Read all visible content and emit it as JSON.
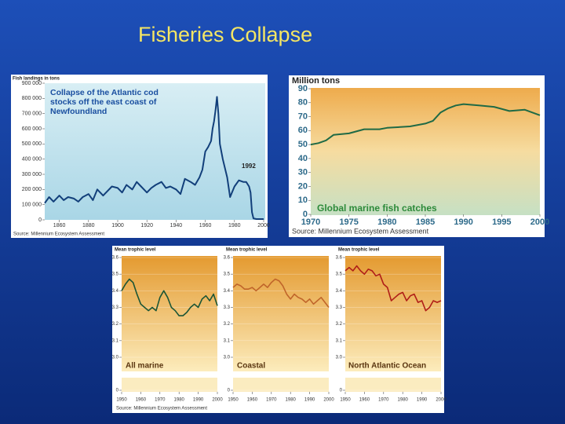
{
  "title": "Fisheries Collapse",
  "chart_data": [
    {
      "type": "line",
      "title": "Collapse of the Atlantic cod stocks off the east coast of Newfoundland",
      "ylabel": "Fish landings in tons",
      "annotation": "1992",
      "source": "Source: Millennium Ecosystem Assessment",
      "x": [
        1850,
        1853,
        1856,
        1860,
        1863,
        1866,
        1870,
        1873,
        1876,
        1880,
        1883,
        1886,
        1890,
        1893,
        1896,
        1900,
        1903,
        1906,
        1910,
        1913,
        1916,
        1920,
        1923,
        1926,
        1930,
        1933,
        1936,
        1940,
        1943,
        1946,
        1950,
        1953,
        1956,
        1958,
        1960,
        1962,
        1964,
        1965,
        1966,
        1967,
        1968,
        1969,
        1970,
        1972,
        1975,
        1977,
        1980,
        1983,
        1986,
        1988,
        1990,
        1991,
        1992,
        1993,
        1995,
        2000
      ],
      "series": [
        {
          "name": "Atlantic cod landings",
          "color": "#123f7a",
          "values": [
            110000,
            150000,
            120000,
            160000,
            130000,
            150000,
            140000,
            120000,
            150000,
            170000,
            130000,
            200000,
            160000,
            190000,
            220000,
            210000,
            180000,
            230000,
            200000,
            250000,
            220000,
            180000,
            210000,
            230000,
            250000,
            210000,
            220000,
            200000,
            170000,
            270000,
            250000,
            230000,
            280000,
            330000,
            450000,
            480000,
            520000,
            600000,
            650000,
            720000,
            810000,
            700000,
            500000,
            400000,
            280000,
            150000,
            220000,
            260000,
            250000,
            250000,
            220000,
            180000,
            50000,
            10000,
            5000,
            5000
          ]
        }
      ],
      "xlim": [
        1850,
        2000
      ],
      "xticks": [
        1860,
        1880,
        1900,
        1920,
        1940,
        1960,
        1980,
        2000
      ],
      "ylim": [
        0,
        900000
      ],
      "yticks": [
        0,
        {
          "value": 100000,
          "label": "100 000"
        },
        {
          "value": 200000,
          "label": "200 000"
        },
        {
          "value": 300000,
          "label": "300 000"
        },
        {
          "value": 400000,
          "label": "400 000"
        },
        {
          "value": 500000,
          "label": "500 000"
        },
        {
          "value": 600000,
          "label": "600 000"
        },
        {
          "value": 700000,
          "label": "700 000"
        },
        {
          "value": 800000,
          "label": "800 000"
        },
        {
          "value": 900000,
          "label": "900 000"
        }
      ]
    },
    {
      "type": "line",
      "ylabel": "Million tons",
      "label": "Global marine fish catches",
      "source": "Source: Millennium Ecosystem Assessment",
      "x": [
        1970,
        1971,
        1972,
        1973,
        1975,
        1977,
        1979,
        1980,
        1983,
        1985,
        1986,
        1987,
        1988,
        1989,
        1990,
        1992,
        1994,
        1996,
        1998,
        2000
      ],
      "series": [
        {
          "name": "Global marine fish catches",
          "color": "#1f6a45",
          "values": [
            50,
            51,
            53,
            57,
            58,
            61,
            61,
            62,
            63,
            65,
            67,
            73,
            76,
            78,
            79,
            78,
            77,
            74,
            75,
            71
          ]
        }
      ],
      "xlim": [
        1970,
        2000
      ],
      "xticks": [
        1970,
        1975,
        1980,
        1985,
        1990,
        1995,
        2000
      ],
      "ylim": [
        0,
        90
      ],
      "yticks": [
        0,
        10,
        20,
        30,
        40,
        50,
        60,
        70,
        80,
        90
      ]
    },
    {
      "type": "line",
      "ylabel": "Mean trophic level",
      "label": "All marine",
      "source": "Source: Millennium Ecosystem Assessment",
      "x": [
        1950,
        1952,
        1954,
        1956,
        1958,
        1960,
        1962,
        1964,
        1966,
        1968,
        1970,
        1972,
        1974,
        1976,
        1978,
        1980,
        1982,
        1984,
        1986,
        1988,
        1990,
        1992,
        1994,
        1996,
        1998,
        2000
      ],
      "series": [
        {
          "name": "All marine",
          "color": "#1b5535",
          "values": [
            3.4,
            3.44,
            3.47,
            3.45,
            3.38,
            3.32,
            3.3,
            3.28,
            3.3,
            3.28,
            3.36,
            3.4,
            3.36,
            3.3,
            3.28,
            3.25,
            3.25,
            3.27,
            3.3,
            3.32,
            3.3,
            3.35,
            3.37,
            3.34,
            3.38,
            3.31
          ]
        }
      ],
      "xlim": [
        1950,
        2000
      ],
      "xticks": [
        1950,
        1960,
        1970,
        1980,
        1990,
        2000
      ],
      "ylim": [
        3,
        3.6
      ],
      "yticks": [
        0,
        {
          "value": 3,
          "label": "3.0"
        },
        3.1,
        3.2,
        3.3,
        3.4,
        3.5,
        3.6
      ]
    },
    {
      "type": "line",
      "ylabel": "Mean trophic level",
      "label": "Coastal",
      "x": [
        1950,
        1952,
        1954,
        1956,
        1958,
        1960,
        1962,
        1964,
        1966,
        1968,
        1970,
        1972,
        1974,
        1976,
        1978,
        1980,
        1982,
        1984,
        1986,
        1988,
        1990,
        1992,
        1994,
        1996,
        1998,
        2000
      ],
      "series": [
        {
          "name": "Coastal",
          "color": "#c0652a",
          "values": [
            3.42,
            3.44,
            3.43,
            3.41,
            3.41,
            3.42,
            3.4,
            3.42,
            3.44,
            3.42,
            3.45,
            3.47,
            3.46,
            3.43,
            3.38,
            3.35,
            3.38,
            3.36,
            3.35,
            3.33,
            3.35,
            3.32,
            3.34,
            3.36,
            3.33,
            3.3
          ]
        }
      ],
      "xlim": [
        1950,
        2000
      ],
      "xticks": [
        1950,
        1960,
        1970,
        1980,
        1990,
        2000
      ],
      "ylim": [
        3,
        3.6
      ],
      "yticks": [
        0,
        {
          "value": 3,
          "label": "3.0"
        },
        3.1,
        3.2,
        3.3,
        3.4,
        3.5,
        3.6
      ]
    },
    {
      "type": "line",
      "ylabel": "Mean trophic level",
      "label": "North Atlantic Ocean",
      "x": [
        1950,
        1952,
        1954,
        1956,
        1958,
        1960,
        1962,
        1964,
        1966,
        1968,
        1970,
        1972,
        1974,
        1976,
        1978,
        1980,
        1982,
        1984,
        1986,
        1988,
        1990,
        1992,
        1994,
        1996,
        1998,
        2000
      ],
      "series": [
        {
          "name": "North Atlantic Ocean",
          "color": "#b01e18",
          "values": [
            3.52,
            3.54,
            3.52,
            3.55,
            3.52,
            3.5,
            3.53,
            3.52,
            3.49,
            3.5,
            3.44,
            3.42,
            3.34,
            3.36,
            3.38,
            3.39,
            3.34,
            3.37,
            3.38,
            3.33,
            3.34,
            3.28,
            3.3,
            3.34,
            3.33,
            3.34
          ]
        }
      ],
      "xlim": [
        1950,
        2000
      ],
      "xticks": [
        1950,
        1960,
        1970,
        1980,
        1990,
        2000
      ],
      "ylim": [
        3,
        3.6
      ],
      "yticks": [
        0,
        {
          "value": 3,
          "label": "3.0"
        },
        3.1,
        3.2,
        3.3,
        3.4,
        3.5,
        3.6
      ]
    }
  ]
}
